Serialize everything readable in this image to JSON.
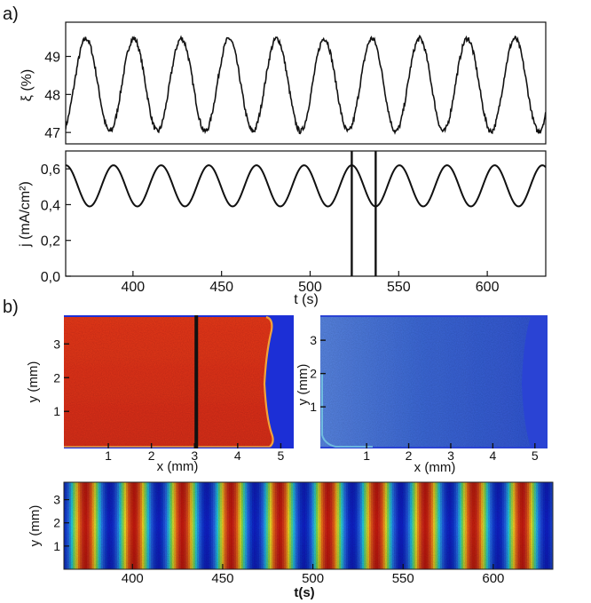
{
  "panel_labels": {
    "a": "a)",
    "b": "b)"
  },
  "chart_data": [
    {
      "id": "xi",
      "type": "line",
      "title": "",
      "ylabel": "ξ (%)",
      "xlabel": "",
      "xlim": [
        362,
        633
      ],
      "ylim": [
        46.7,
        49.9
      ],
      "yticks": [
        47,
        48,
        49
      ],
      "series": [
        {
          "name": "ξ",
          "color": "#111111",
          "model": {
            "kind": "sine",
            "mean": 48.25,
            "amplitude": 1.22,
            "period": 26.9,
            "phase_max_t": 373.5,
            "noise": 0.07
          }
        }
      ]
    },
    {
      "id": "j",
      "type": "line",
      "ylabel": "j (mA/cm²)",
      "xlabel": "t (s)",
      "xlim": [
        362,
        633
      ],
      "ylim": [
        0.0,
        0.7
      ],
      "yticks": [
        0.0,
        0.2,
        0.4,
        0.6
      ],
      "ytick_labels": [
        "0,0",
        "0,2",
        "0,4",
        "0,6"
      ],
      "xticks": [
        400,
        450,
        500,
        550,
        600
      ],
      "series": [
        {
          "name": "j",
          "color": "#111111",
          "model": {
            "kind": "sine",
            "mean": 0.505,
            "amplitude": 0.115,
            "period": 26.9,
            "phase_max_t": 389.0,
            "noise": 0
          }
        }
      ],
      "markers": [
        {
          "x": 523.5
        },
        {
          "x": 537.0
        }
      ]
    },
    {
      "id": "img_red",
      "type": "heatmap",
      "xlabel": "x (mm)",
      "ylabel": "y (mm)",
      "xlim": [
        -0.03,
        5.3
      ],
      "ylim": [
        -0.1,
        3.85
      ],
      "xticks": [
        1,
        2,
        3,
        4,
        5
      ],
      "yticks": [
        1,
        2,
        3
      ],
      "fill_color": "#e8321c",
      "background_color": "#1c2fd6",
      "marker_x": 3.0
    },
    {
      "id": "img_blue",
      "type": "heatmap",
      "xlabel": "x (mm)",
      "ylabel": "y (mm)",
      "xlim": [
        -0.1,
        5.3
      ],
      "ylim": [
        -0.25,
        3.75
      ],
      "xticks": [
        1,
        2,
        3,
        4,
        5
      ],
      "yticks": [
        1,
        2,
        3
      ],
      "fill_color": "#3f6ad8",
      "background_color": "#2a43d4"
    },
    {
      "id": "kymo",
      "type": "heatmap",
      "xlabel": "t(s)",
      "ylabel": "y (mm)",
      "xlim": [
        362,
        633
      ],
      "ylim": [
        0.0,
        3.75
      ],
      "xticks": [
        400,
        450,
        500,
        550,
        600
      ],
      "yticks": [
        1,
        2,
        3
      ],
      "model": {
        "kind": "sine",
        "period": 26.9,
        "phase_max_t": 373.5
      }
    }
  ]
}
